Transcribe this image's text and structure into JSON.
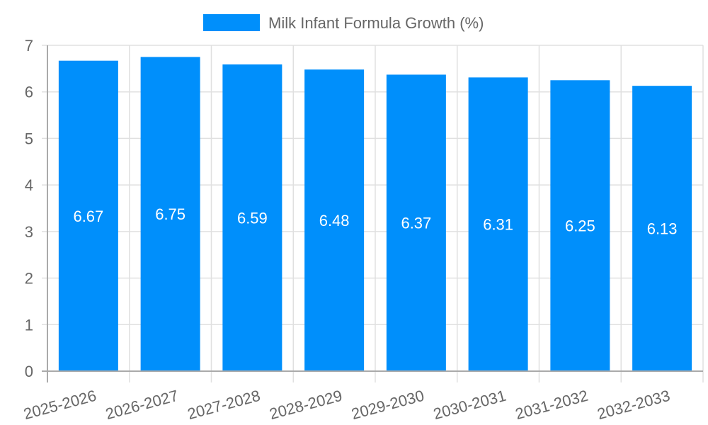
{
  "chart_data": {
    "type": "bar",
    "title": "",
    "xlabel": "",
    "ylabel": "",
    "categories": [
      "2025-2026",
      "2026-2027",
      "2027-2028",
      "2028-2029",
      "2029-2030",
      "2030-2031",
      "2031-2032",
      "2032-2033"
    ],
    "series": [
      {
        "name": "Milk Infant Formula Growth (%)",
        "values": [
          6.67,
          6.75,
          6.59,
          6.48,
          6.37,
          6.31,
          6.25,
          6.13
        ],
        "color": "#008ffb"
      }
    ],
    "data_labels": [
      "6.67",
      "6.75",
      "6.59",
      "6.48",
      "6.37",
      "6.31",
      "6.25",
      "6.13"
    ],
    "ylim": [
      0,
      7
    ],
    "yticks": [
      "0",
      "1",
      "2",
      "3",
      "4",
      "5",
      "6",
      "7"
    ],
    "grid": true,
    "legend_position": "top"
  },
  "legend": {
    "label": "Milk Infant Formula Growth (%)",
    "swatch_color": "#008ffb"
  }
}
